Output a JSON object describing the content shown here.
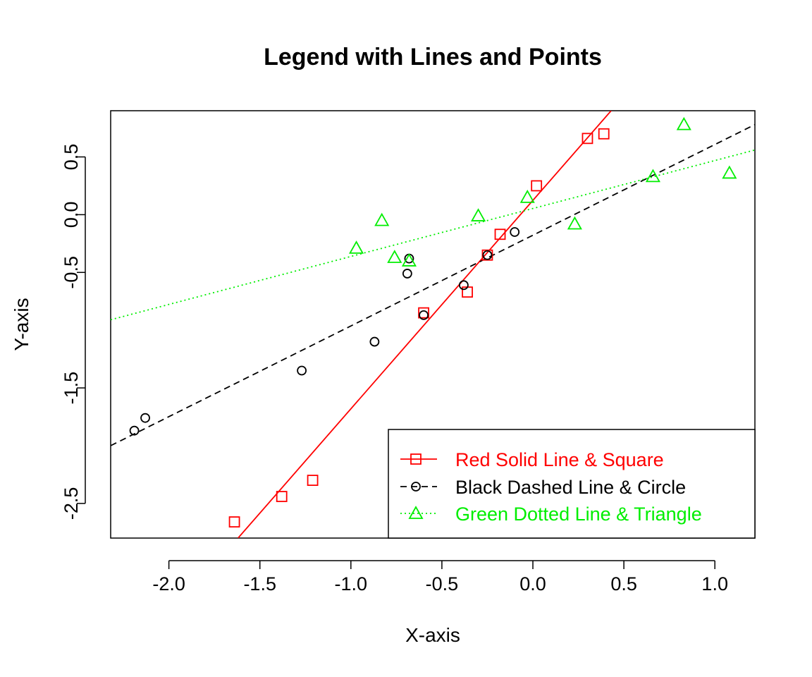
{
  "chart_data": {
    "type": "scatter",
    "title": "Legend with Lines and Points",
    "xlabel": "X-axis",
    "ylabel": "Y-axis",
    "xlim": [
      -2.32,
      1.22
    ],
    "ylim": [
      -2.8,
      0.9
    ],
    "x_ticks": [
      -2.0,
      -1.5,
      -1.0,
      -0.5,
      0.0,
      0.5,
      1.0
    ],
    "x_tick_labels": [
      "-2.0",
      "-1.5",
      "-1.0",
      "-0.5",
      "0.0",
      "0.5",
      "1.0"
    ],
    "y_ticks": [
      0.5,
      0.0,
      -0.5,
      -1.5,
      -2.5
    ],
    "y_tick_labels": [
      "0.5",
      "0.0",
      "-0.5",
      "-1.5",
      "-2.5"
    ],
    "grid": false,
    "legend_position": "bottom-right",
    "series": [
      {
        "name": "Red Solid Line & Square",
        "color": "#ff0000",
        "marker": "square",
        "line_style": "solid",
        "points": [
          {
            "x": -1.64,
            "y": -2.66
          },
          {
            "x": -1.38,
            "y": -2.44
          },
          {
            "x": -1.21,
            "y": -2.3
          },
          {
            "x": -0.6,
            "y": -0.85
          },
          {
            "x": -0.36,
            "y": -0.67
          },
          {
            "x": -0.25,
            "y": -0.35
          },
          {
            "x": -0.18,
            "y": -0.17
          },
          {
            "x": 0.02,
            "y": 0.25
          },
          {
            "x": 0.3,
            "y": 0.66
          },
          {
            "x": 0.39,
            "y": 0.7
          }
        ],
        "line": {
          "x1": -1.62,
          "y1": -2.8,
          "x2": 0.43,
          "y2": 0.9
        }
      },
      {
        "name": "Black Dashed Line & Circle",
        "color": "#000000",
        "marker": "circle",
        "line_style": "dashed",
        "points": [
          {
            "x": -2.19,
            "y": -1.87
          },
          {
            "x": -2.13,
            "y": -1.76
          },
          {
            "x": -1.27,
            "y": -1.35
          },
          {
            "x": -0.87,
            "y": -1.1
          },
          {
            "x": -0.69,
            "y": -0.51
          },
          {
            "x": -0.68,
            "y": -0.38
          },
          {
            "x": -0.6,
            "y": -0.87
          },
          {
            "x": -0.38,
            "y": -0.61
          },
          {
            "x": -0.25,
            "y": -0.35
          },
          {
            "x": -0.1,
            "y": -0.15
          }
        ],
        "line": {
          "x1": -2.32,
          "y1": -2.0,
          "x2": 1.22,
          "y2": 0.78
        }
      },
      {
        "name": "Green Dotted Line & Triangle",
        "color": "#00ee00",
        "marker": "triangle",
        "line_style": "dotted",
        "points": [
          {
            "x": -0.97,
            "y": -0.29
          },
          {
            "x": -0.83,
            "y": -0.05
          },
          {
            "x": -0.76,
            "y": -0.37
          },
          {
            "x": -0.68,
            "y": -0.4
          },
          {
            "x": -0.3,
            "y": -0.01
          },
          {
            "x": -0.03,
            "y": 0.15
          },
          {
            "x": 0.23,
            "y": -0.08
          },
          {
            "x": 0.66,
            "y": 0.33
          },
          {
            "x": 0.83,
            "y": 0.78
          },
          {
            "x": 1.08,
            "y": 0.36
          }
        ],
        "line": {
          "x1": -2.32,
          "y1": -0.91,
          "x2": 1.22,
          "y2": 0.56
        }
      }
    ]
  }
}
